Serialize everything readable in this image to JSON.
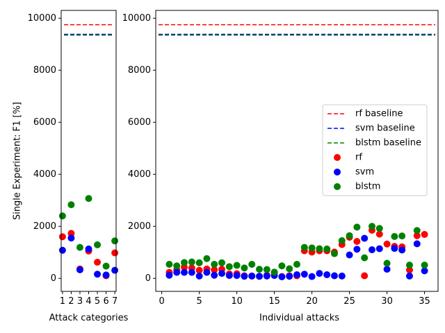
{
  "chart_data": {
    "type": "scatter",
    "ylabel": "Single Experiment: F1 [%]",
    "colors": {
      "rf": "#ff0000",
      "svm": "#0000ff",
      "blstm": "#008000"
    },
    "panels": [
      {
        "name": "categories",
        "xlabel": "Attack categories",
        "xlim": [
          0.85,
          7.15
        ],
        "ylim": [
          -500,
          10300
        ],
        "xticks": [
          1,
          2,
          3,
          4,
          5,
          6,
          7
        ],
        "xtick_labels": [
          "1",
          "2",
          "3",
          "4",
          "5",
          "6",
          "7"
        ],
        "yticks": [
          0,
          2000,
          4000,
          6000,
          8000,
          10000
        ],
        "ytick_labels": [
          "0",
          "2000",
          "4000",
          "6000",
          "8000",
          "10000"
        ],
        "baselines": {
          "rf": 9750,
          "svm": 9380,
          "blstm": 9350
        },
        "series": [
          {
            "name": "rf",
            "x": [
              1,
              2,
              3,
              4,
              5,
              6,
              7
            ],
            "y": [
              1600,
              1730,
              360,
              1050,
              620,
              100,
              980
            ]
          },
          {
            "name": "svm",
            "x": [
              1,
              2,
              3,
              4,
              5,
              6,
              7
            ],
            "y": [
              1080,
              1550,
              330,
              1130,
              160,
              130,
              310
            ]
          },
          {
            "name": "blstm",
            "x": [
              1,
              2,
              3,
              4,
              5,
              6,
              7
            ],
            "y": [
              2400,
              2830,
              1190,
              3070,
              1290,
              470,
              1440
            ]
          }
        ]
      },
      {
        "name": "attacks",
        "xlabel": "Individual attacks",
        "xlim": [
          -0.8,
          36.8
        ],
        "ylim": [
          -500,
          10300
        ],
        "xticks": [
          0,
          5,
          10,
          15,
          20,
          25,
          30,
          35
        ],
        "xtick_labels": [
          "0",
          "5",
          "10",
          "15",
          "20",
          "25",
          "30",
          "35"
        ],
        "yticks": [
          0,
          2000,
          4000,
          6000,
          8000,
          10000
        ],
        "ytick_labels": [
          "0",
          "2000",
          "4000",
          "6000",
          "8000",
          "10000"
        ],
        "baselines": {
          "rf": 9750,
          "svm": 9380,
          "blstm": 9350
        },
        "series": [
          {
            "name": "rf",
            "x": [
              1,
              2,
              3,
              4,
              5,
              6,
              7,
              8,
              9,
              10,
              11,
              12,
              13,
              14,
              15,
              16,
              17,
              18,
              19,
              20,
              21,
              22,
              23,
              24,
              25,
              26,
              27,
              28,
              29,
              30,
              31,
              32,
              33,
              34,
              35
            ],
            "y": [
              230,
              330,
              430,
              400,
              310,
              360,
              330,
              350,
              170,
              180,
              100,
              90,
              80,
              120,
              220,
              70,
              100,
              100,
              1060,
              1010,
              1060,
              1060,
              1010,
              1300,
              1580,
              1420,
              100,
              1850,
              1700,
              1320,
              1230,
              1210,
              320,
              1640,
              1690
            ]
          },
          {
            "name": "svm",
            "x": [
              1,
              2,
              3,
              4,
              5,
              6,
              7,
              8,
              9,
              10,
              11,
              12,
              13,
              14,
              15,
              16,
              17,
              18,
              19,
              20,
              21,
              22,
              23,
              24,
              25,
              26,
              27,
              28,
              29,
              30,
              31,
              32,
              33,
              34,
              35
            ],
            "y": [
              120,
              230,
              230,
              230,
              90,
              230,
              120,
              190,
              110,
              110,
              80,
              90,
              80,
              90,
              110,
              60,
              80,
              140,
              160,
              70,
              190,
              140,
              100,
              90,
              900,
              1120,
              1540,
              1100,
              1140,
              350,
              1150,
              1090,
              90,
              1330,
              290
            ]
          },
          {
            "name": "blstm",
            "x": [
              1,
              2,
              3,
              4,
              5,
              6,
              7,
              8,
              9,
              10,
              11,
              12,
              13,
              14,
              15,
              16,
              17,
              18,
              19,
              20,
              21,
              22,
              23,
              24,
              25,
              26,
              27,
              28,
              29,
              30,
              31,
              32,
              33,
              34,
              35
            ],
            "y": [
              540,
              480,
              610,
              630,
              600,
              760,
              540,
              600,
              450,
              500,
              400,
              540,
              350,
              340,
              240,
              480,
              370,
              540,
              1190,
              1170,
              1140,
              1130,
              950,
              1450,
              1640,
              1970,
              790,
              2000,
              1920,
              580,
              1610,
              1630,
              510,
              1840,
              510
            ]
          }
        ]
      }
    ],
    "legend": {
      "position": "center-right",
      "entries": [
        {
          "label": "rf baseline",
          "series": "rf",
          "kind": "line"
        },
        {
          "label": "svm baseline",
          "series": "svm",
          "kind": "line"
        },
        {
          "label": "blstm baseline",
          "series": "blstm",
          "kind": "line"
        },
        {
          "label": "rf",
          "series": "rf",
          "kind": "marker"
        },
        {
          "label": "svm",
          "series": "svm",
          "kind": "marker"
        },
        {
          "label": "blstm",
          "series": "blstm",
          "kind": "marker"
        }
      ]
    }
  }
}
